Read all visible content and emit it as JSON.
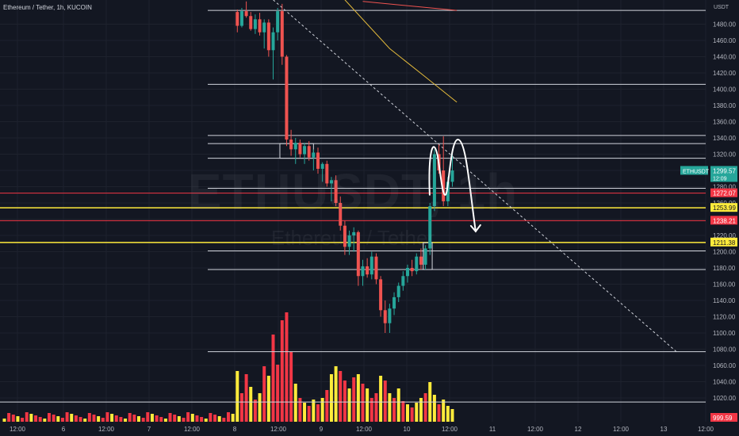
{
  "legend": {
    "title": "Ethereum / Tether, 1h, KUCOIN"
  },
  "watermark": {
    "symbol": "ETHUSDT, 1h",
    "name": "Ethereum / Tether"
  },
  "axis": {
    "currency": "USDT",
    "price_ticks": [
      1480,
      1460,
      1440,
      1420,
      1400,
      1380,
      1360,
      1340,
      1320,
      1300,
      1280,
      1260,
      1240,
      1220,
      1200,
      1180,
      1160,
      1140,
      1120,
      1100,
      1080,
      1060,
      1040,
      1020
    ],
    "time_ticks": [
      "12:00",
      "6",
      "12:00",
      "7",
      "12:00",
      "8",
      "12:00",
      "9",
      "12:00",
      "10",
      "12:00",
      "11",
      "12:00",
      "12",
      "12:00",
      "13",
      "12:00"
    ]
  },
  "colors": {
    "up": "#26a69a",
    "down": "#ef5350",
    "bg": "#131722",
    "grid": "#1e222d",
    "text": "#b2b5be",
    "level_white": "#d1d4dc",
    "level_red": "#f23645",
    "level_yellow": "#ffeb3b"
  },
  "price_badges": {
    "current_symbol": "ETHUSDT",
    "current_price": "1299.57",
    "countdown": "12:09",
    "red_1": "1272.07",
    "yellow_1": "1253.99",
    "red_2": "1238.21",
    "yellow_2": "1211.38",
    "bottom": "999.59"
  },
  "chart_data": {
    "type": "candlestick",
    "title": "Ethereum / Tether, 1h, KUCOIN",
    "ylabel": "USDT",
    "ylim": [
      1000,
      1500
    ],
    "grid": true,
    "current_price": 1299.57,
    "horizontal_levels": [
      {
        "price": 1497,
        "color": "white"
      },
      {
        "price": 1406,
        "color": "white"
      },
      {
        "price": 1343,
        "color": "white"
      },
      {
        "price": 1333,
        "color": "white"
      },
      {
        "price": 1315,
        "color": "white"
      },
      {
        "price": 1278,
        "color": "white"
      },
      {
        "price": 1272.07,
        "color": "red"
      },
      {
        "price": 1253.99,
        "color": "yellow"
      },
      {
        "price": 1238.21,
        "color": "red"
      },
      {
        "price": 1211.38,
        "color": "yellow"
      },
      {
        "price": 1201,
        "color": "white"
      },
      {
        "price": 1178,
        "color": "white"
      },
      {
        "price": 1077,
        "color": "white"
      },
      {
        "price": 1015,
        "color": "white"
      }
    ],
    "moving_averages": [
      {
        "color": "#ef5350",
        "points": [
          [
            80,
            1508
          ],
          [
            101,
            1497
          ]
        ]
      },
      {
        "color": "#e2b93b",
        "points": [
          [
            76,
            1510
          ],
          [
            86,
            1450
          ],
          [
            94,
            1415
          ],
          [
            101,
            1384
          ]
        ]
      }
    ],
    "trendline": {
      "from": [
        60,
        1510
      ],
      "to": [
        150,
        1077
      ]
    },
    "resistance_box": {
      "from": 61.5,
      "to": 69,
      "top": 1333,
      "bottom": 1315
    },
    "candles": [
      [
        52,
        1495,
        1498,
        1470,
        1478
      ],
      [
        53,
        1478,
        1500,
        1476,
        1496
      ],
      [
        54,
        1496,
        1508,
        1488,
        1490
      ],
      [
        55,
        1490,
        1495,
        1472,
        1474
      ],
      [
        56,
        1474,
        1492,
        1468,
        1486
      ],
      [
        57,
        1486,
        1494,
        1466,
        1470
      ],
      [
        58,
        1470,
        1486,
        1450,
        1482
      ],
      [
        59,
        1482,
        1486,
        1440,
        1448
      ],
      [
        60,
        1448,
        1476,
        1412,
        1470
      ],
      [
        61,
        1470,
        1500,
        1460,
        1496
      ],
      [
        62,
        1496,
        1505,
        1430,
        1440
      ],
      [
        63,
        1440,
        1442,
        1330,
        1338
      ],
      [
        64,
        1338,
        1350,
        1318,
        1326
      ],
      [
        65,
        1326,
        1340,
        1308,
        1334
      ],
      [
        66,
        1334,
        1338,
        1316,
        1320
      ],
      [
        67,
        1320,
        1334,
        1308,
        1330
      ],
      [
        68,
        1330,
        1336,
        1312,
        1316
      ],
      [
        69,
        1316,
        1326,
        1300,
        1322
      ],
      [
        70,
        1322,
        1328,
        1296,
        1302
      ],
      [
        71,
        1302,
        1310,
        1286,
        1308
      ],
      [
        72,
        1308,
        1312,
        1280,
        1284
      ],
      [
        73,
        1284,
        1292,
        1262,
        1288
      ],
      [
        74,
        1288,
        1294,
        1256,
        1260
      ],
      [
        75,
        1260,
        1268,
        1226,
        1232
      ],
      [
        76,
        1232,
        1238,
        1196,
        1206
      ],
      [
        77,
        1206,
        1226,
        1196,
        1220
      ],
      [
        78,
        1220,
        1230,
        1200,
        1224
      ],
      [
        79,
        1224,
        1226,
        1158,
        1170
      ],
      [
        80,
        1170,
        1190,
        1158,
        1182
      ],
      [
        81,
        1182,
        1192,
        1168,
        1172
      ],
      [
        82,
        1172,
        1200,
        1166,
        1194
      ],
      [
        83,
        1194,
        1198,
        1160,
        1166
      ],
      [
        84,
        1166,
        1170,
        1120,
        1128
      ],
      [
        85,
        1128,
        1140,
        1100,
        1112
      ],
      [
        86,
        1112,
        1136,
        1100,
        1130
      ],
      [
        87,
        1130,
        1150,
        1122,
        1144
      ],
      [
        88,
        1144,
        1162,
        1138,
        1158
      ],
      [
        89,
        1158,
        1176,
        1152,
        1170
      ],
      [
        90,
        1170,
        1184,
        1162,
        1180
      ],
      [
        91,
        1180,
        1190,
        1170,
        1176
      ],
      [
        92,
        1176,
        1198,
        1172,
        1194
      ],
      [
        93,
        1194,
        1204,
        1178,
        1184
      ],
      [
        94,
        1184,
        1208,
        1178,
        1204
      ],
      [
        95,
        1204,
        1260,
        1196,
        1256
      ],
      [
        96,
        1256,
        1326,
        1250,
        1320
      ],
      [
        97,
        1320,
        1332,
        1296,
        1300
      ],
      [
        98,
        1300,
        1342,
        1256,
        1262
      ],
      [
        99,
        1262,
        1292,
        1256,
        1286
      ],
      [
        100,
        1286,
        1320,
        1280,
        1300
      ]
    ],
    "volume": [
      [
        52,
        64,
        "yellow"
      ],
      [
        53,
        36,
        "red"
      ],
      [
        54,
        60,
        "red"
      ],
      [
        55,
        44,
        "yellow"
      ],
      [
        56,
        28,
        "red"
      ],
      [
        57,
        36,
        "yellow"
      ],
      [
        58,
        70,
        "red"
      ],
      [
        59,
        58,
        "yellow"
      ],
      [
        60,
        110,
        "red"
      ],
      [
        61,
        72,
        "red"
      ],
      [
        62,
        128,
        "red"
      ],
      [
        63,
        138,
        "red"
      ],
      [
        64,
        88,
        "red"
      ],
      [
        65,
        48,
        "yellow"
      ],
      [
        66,
        30,
        "red"
      ],
      [
        67,
        24,
        "yellow"
      ],
      [
        68,
        20,
        "red"
      ],
      [
        69,
        28,
        "yellow"
      ],
      [
        70,
        22,
        "red"
      ],
      [
        71,
        30,
        "yellow"
      ],
      [
        72,
        40,
        "red"
      ],
      [
        73,
        60,
        "yellow"
      ],
      [
        74,
        70,
        "yellow"
      ],
      [
        75,
        64,
        "red"
      ],
      [
        76,
        52,
        "red"
      ],
      [
        77,
        42,
        "yellow"
      ],
      [
        78,
        56,
        "red"
      ],
      [
        79,
        60,
        "yellow"
      ],
      [
        80,
        48,
        "red"
      ],
      [
        81,
        42,
        "yellow"
      ],
      [
        82,
        30,
        "red"
      ],
      [
        83,
        36,
        "red"
      ],
      [
        84,
        58,
        "yellow"
      ],
      [
        85,
        52,
        "red"
      ],
      [
        86,
        36,
        "yellow"
      ],
      [
        87,
        30,
        "red"
      ],
      [
        88,
        42,
        "yellow"
      ],
      [
        89,
        26,
        "red"
      ],
      [
        90,
        22,
        "yellow"
      ],
      [
        91,
        18,
        "red"
      ],
      [
        92,
        24,
        "yellow"
      ],
      [
        93,
        30,
        "yellow"
      ],
      [
        94,
        36,
        "red"
      ],
      [
        95,
        50,
        "yellow"
      ],
      [
        96,
        34,
        "yellow"
      ],
      [
        97,
        22,
        "red"
      ],
      [
        98,
        28,
        "yellow"
      ],
      [
        99,
        20,
        "yellow"
      ],
      [
        100,
        16,
        "yellow"
      ]
    ],
    "annotation": {
      "type": "hand-drawn double top with down arrow"
    }
  }
}
